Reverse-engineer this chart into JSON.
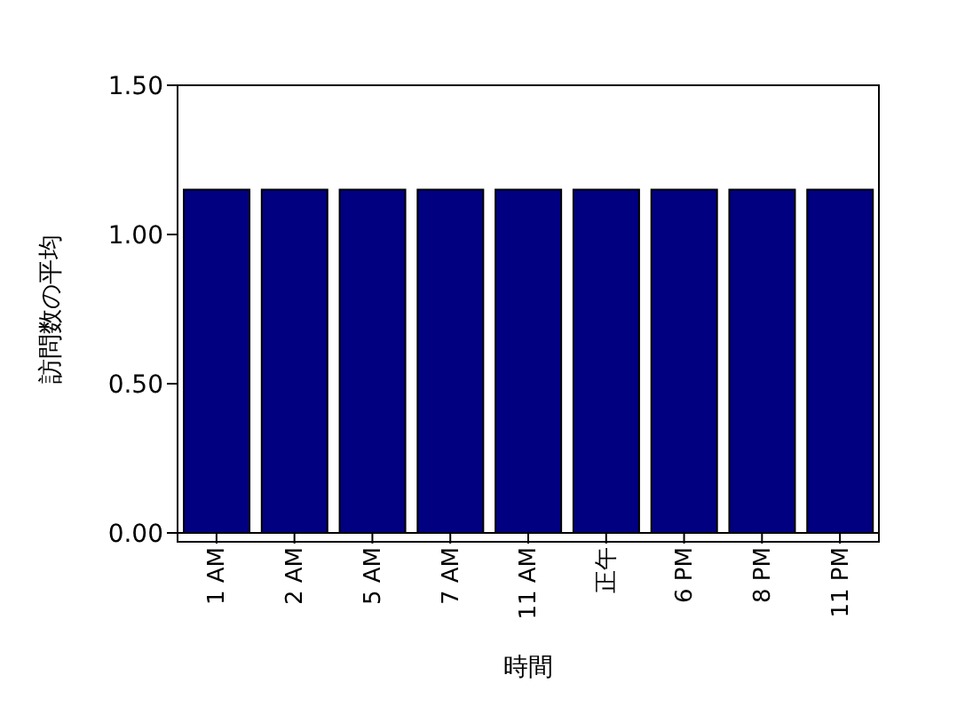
{
  "chart_data": {
    "type": "bar",
    "xlabel": "時間",
    "ylabel": "訪問数の平均",
    "categories": [
      "1 AM",
      "2 AM",
      "5 AM",
      "7 AM",
      "11 AM",
      "正午",
      "6 PM",
      "8 PM",
      "11 PM"
    ],
    "values": [
      1.15,
      1.15,
      1.15,
      1.15,
      1.15,
      1.15,
      1.15,
      1.15,
      1.15
    ],
    "color": "#000080",
    "ylim": [
      0,
      1.5
    ],
    "yticks": [
      {
        "value": 0,
        "label": "0.00"
      },
      {
        "value": 0.5,
        "label": "0.50"
      },
      {
        "value": 1,
        "label": "1.00"
      },
      {
        "value": 1.5,
        "label": "1.50"
      }
    ],
    "grid": false
  }
}
